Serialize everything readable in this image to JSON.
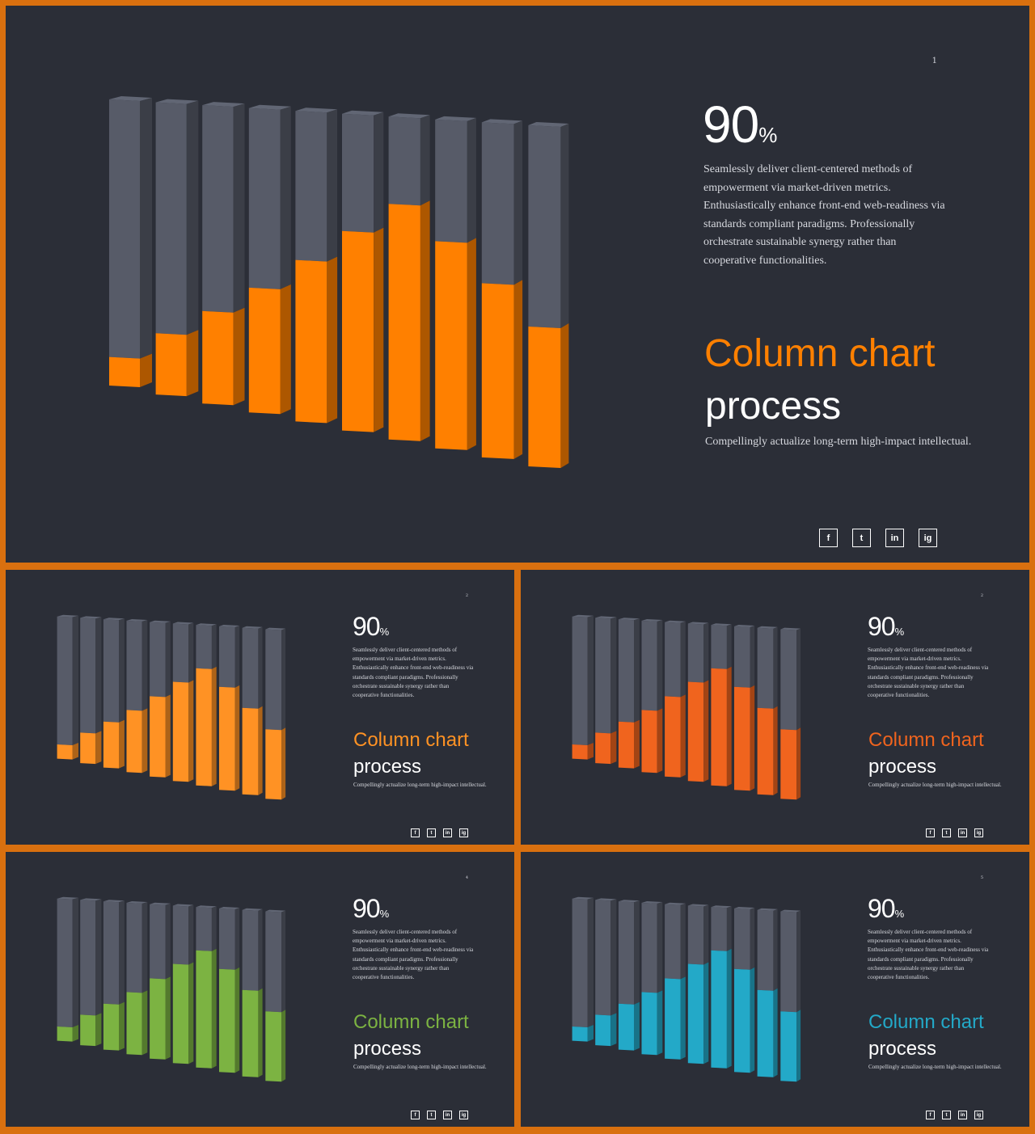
{
  "slides": [
    {
      "id": "main",
      "page_number": "1",
      "headline_value": "90",
      "headline_unit": "%",
      "body": "Seamlessly deliver client-centered methods of empowerment via market-driven metrics. Enthusiastically enhance front-end web-readiness via standards compliant paradigms. Professionally orchestrate sustainable synergy rather than cooperative functionalities.",
      "title": "Column chart",
      "subtitle": "process",
      "tagline": "Compellingly actualize long-term high-impact intellectual.",
      "accent": "#ff8000",
      "socials": [
        "f",
        "t",
        "in",
        "ig"
      ]
    },
    {
      "id": "orange-light",
      "page_number": "2",
      "headline_value": "90",
      "headline_unit": "%",
      "body": "Seamlessly deliver client-centered methods of empowerment via market-driven metrics. Enthusiastically enhance front-end web-readiness via standards compliant paradigms. Professionally orchestrate sustainable synergy rather than cooperative functionalities.",
      "title": "Column chart",
      "subtitle": "process",
      "tagline": "Compellingly actualize long-term high-impact intellectual.",
      "accent": "#ff9224",
      "socials": [
        "f",
        "t",
        "in",
        "ig"
      ]
    },
    {
      "id": "orange-red",
      "page_number": "2",
      "headline_value": "90",
      "headline_unit": "%",
      "body": "Seamlessly deliver client-centered methods of empowerment via market-driven metrics. Enthusiastically enhance front-end web-readiness via standards compliant paradigms. Professionally orchestrate sustainable synergy rather than cooperative functionalities.",
      "title": "Column chart",
      "subtitle": "process",
      "tagline": "Compellingly actualize long-term high-impact intellectual.",
      "accent": "#f0641e",
      "socials": [
        "f",
        "t",
        "in",
        "ig"
      ]
    },
    {
      "id": "green",
      "page_number": "4",
      "headline_value": "90",
      "headline_unit": "%",
      "body": "Seamlessly deliver client-centered methods of empowerment via market-driven metrics. Enthusiastically enhance front-end web-readiness via standards compliant paradigms. Professionally orchestrate sustainable synergy rather than cooperative functionalities.",
      "title": "Column chart",
      "subtitle": "process",
      "tagline": "Compellingly actualize long-term high-impact intellectual.",
      "accent": "#7cb342",
      "socials": [
        "f",
        "t",
        "in",
        "ig"
      ]
    },
    {
      "id": "blue",
      "page_number": "5",
      "headline_value": "90",
      "headline_unit": "%",
      "body": "Seamlessly deliver client-centered methods of empowerment via market-driven metrics. Enthusiastically enhance front-end web-readiness via standards compliant paradigms. Professionally orchestrate sustainable synergy rather than cooperative functionalities.",
      "title": "Column chart",
      "subtitle": "process",
      "tagline": "Compellingly actualize long-term high-impact intellectual.",
      "accent": "#23a9c8",
      "socials": [
        "f",
        "t",
        "in",
        "ig"
      ]
    }
  ],
  "column_fill_levels": [
    0.1,
    0.21,
    0.31,
    0.41,
    0.52,
    0.63,
    0.73,
    0.63,
    0.52,
    0.41
  ],
  "colors": {
    "background": "#2b2e37",
    "border": "#d9700f",
    "column_gray": "#575b68",
    "text": "#ffffff"
  },
  "icons": [
    "facebook-icon",
    "twitter-icon",
    "linkedin-icon",
    "instagram-icon"
  ]
}
